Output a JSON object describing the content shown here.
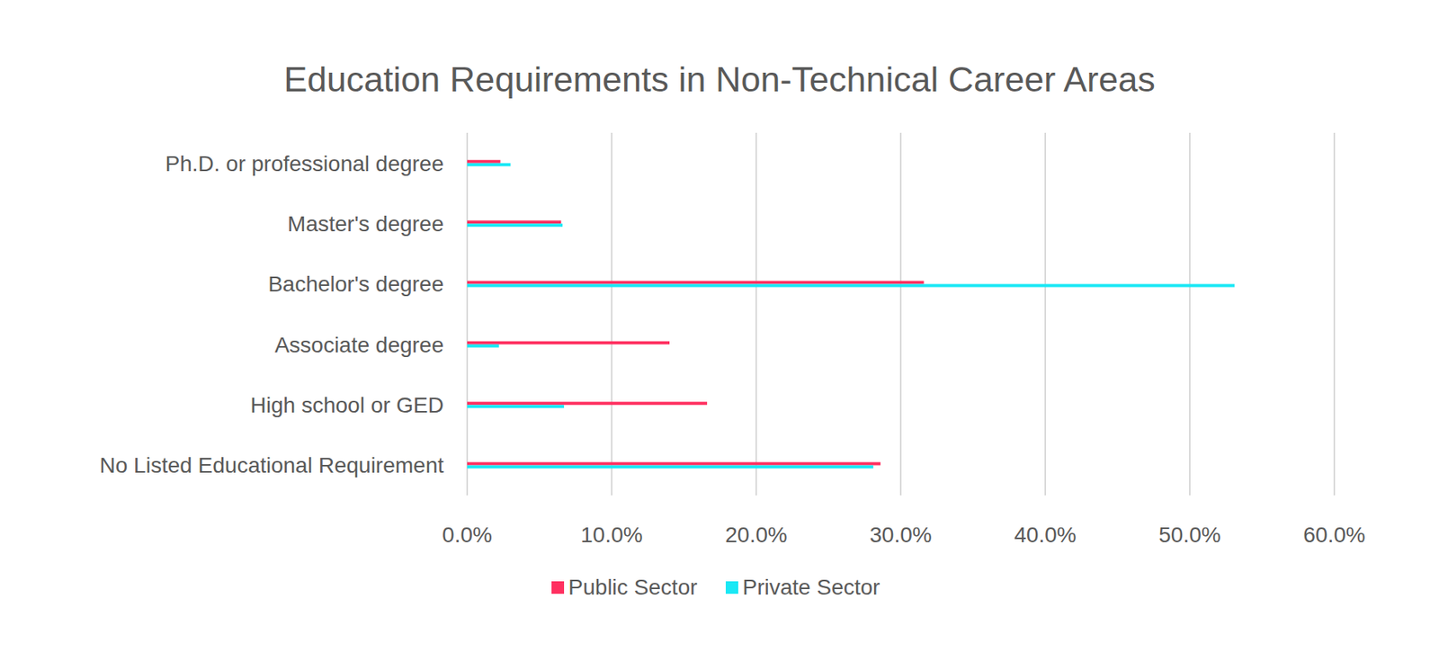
{
  "chart_data": {
    "type": "bar",
    "title": "Education Requirements in Non-Technical Career Areas",
    "orientation": "horizontal",
    "categories": [
      "Ph.D. or professional degree",
      "Master's degree",
      "Bachelor's degree",
      "Associate degree",
      "High school or GED",
      "No Listed Educational Requirement"
    ],
    "series": [
      {
        "name": "Public Sector",
        "color": "#ff3060",
        "values": [
          2.3,
          6.5,
          31.6,
          14.0,
          16.6,
          28.6
        ]
      },
      {
        "name": "Private Sector",
        "color": "#1ae8f5",
        "values": [
          3.0,
          6.6,
          53.1,
          2.2,
          6.7,
          28.1
        ]
      }
    ],
    "xlim": [
      0,
      60
    ],
    "xticks": [
      {
        "value": 0,
        "label": "0.0%"
      },
      {
        "value": 10,
        "label": "10.0%"
      },
      {
        "value": 20,
        "label": "20.0%"
      },
      {
        "value": 30,
        "label": "30.0%"
      },
      {
        "value": 40,
        "label": "40.0%"
      },
      {
        "value": 50,
        "label": "50.0%"
      },
      {
        "value": 60,
        "label": "60.0%"
      }
    ],
    "grid": true,
    "legend": "bottom"
  }
}
